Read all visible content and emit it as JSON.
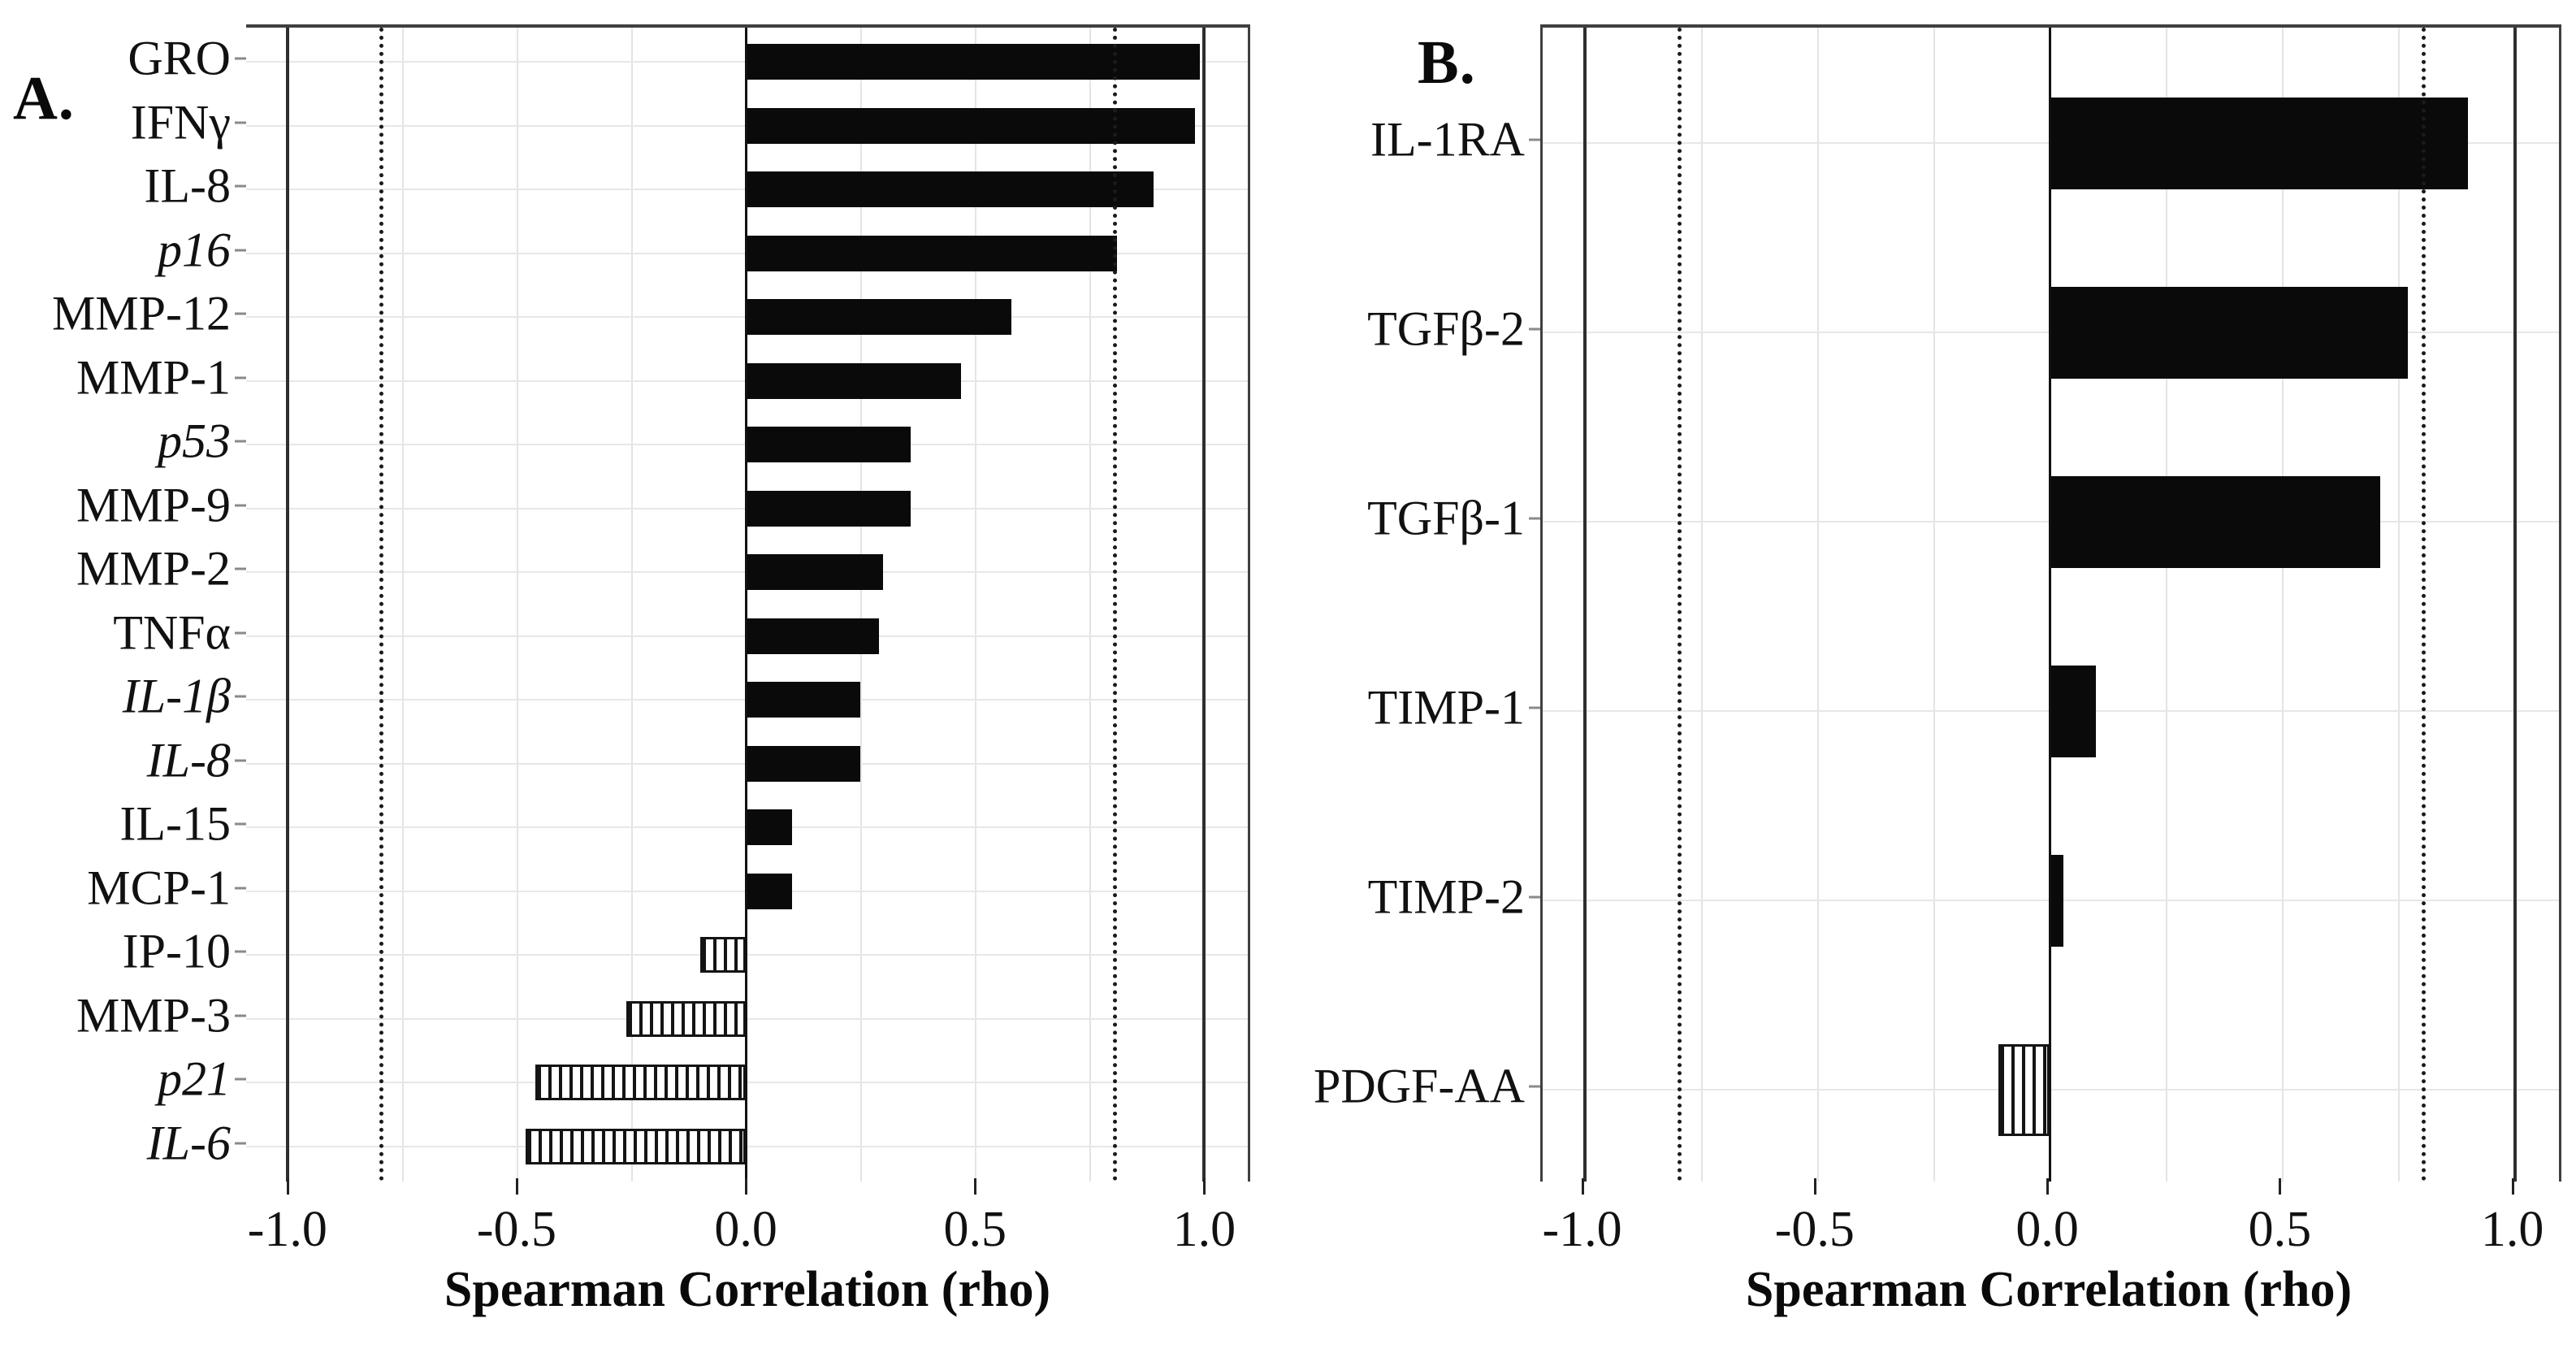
{
  "figure": {
    "panel_a_label": "A.",
    "panel_b_label": "B."
  },
  "chart_data": [
    {
      "type": "bar",
      "orientation": "horizontal",
      "panel": "A",
      "xlabel": "Spearman Correlation (rho)",
      "xlim": [
        -1.09,
        1.095
      ],
      "x_ticks": [
        -1.0,
        -0.5,
        0.0,
        0.5,
        1.0
      ],
      "x_tick_labels": [
        "-1.0",
        "-0.5",
        "0.0",
        "0.5",
        "1.0"
      ],
      "minor_gridlines": [
        -0.75,
        -0.5,
        -0.25,
        0.25,
        0.5,
        0.75
      ],
      "solid_ref_lines": [
        -1.0,
        1.0
      ],
      "dashed_ref_lines": [
        -0.8,
        0.8
      ],
      "grid": true,
      "legend": "none",
      "negative_bar_style": "hatched",
      "positive_bar_style": "solid-black",
      "categories": [
        "GRO",
        "IFNγ",
        "IL-8",
        "p16",
        "MMP-12",
        "MMP-1",
        "p53",
        "MMP-9",
        "MMP-2",
        "TNFα",
        "IL-1β",
        "IL-8",
        "IL-15",
        "MCP-1",
        "IP-10",
        "MMP-3",
        "p21",
        "IL-6"
      ],
      "italic_flags": [
        false,
        false,
        false,
        true,
        false,
        false,
        true,
        false,
        false,
        false,
        true,
        true,
        false,
        false,
        false,
        false,
        true,
        true
      ],
      "values": [
        0.99,
        0.98,
        0.89,
        0.81,
        0.58,
        0.47,
        0.36,
        0.36,
        0.3,
        0.29,
        0.25,
        0.25,
        0.1,
        0.1,
        -0.1,
        -0.26,
        -0.46,
        -0.48
      ]
    },
    {
      "type": "bar",
      "orientation": "horizontal",
      "panel": "B",
      "xlabel": "Spearman Correlation (rho)",
      "xlim": [
        -1.09,
        1.095
      ],
      "x_ticks": [
        -1.0,
        -0.5,
        0.0,
        0.5,
        1.0
      ],
      "x_tick_labels": [
        "-1.0",
        "-0.5",
        "0.0",
        "0.5",
        "1.0"
      ],
      "minor_gridlines": [
        -0.75,
        -0.5,
        -0.25,
        0.25,
        0.5,
        0.75
      ],
      "solid_ref_lines": [
        -1.0,
        1.0
      ],
      "dashed_ref_lines": [
        -0.8,
        0.8
      ],
      "grid": true,
      "legend": "none",
      "negative_bar_style": "hatched",
      "positive_bar_style": "solid-black",
      "categories": [
        "IL-1RA",
        "TGFβ-2",
        "TGFβ-1",
        "TIMP-1",
        "TIMP-2",
        "PDGF-AA"
      ],
      "italic_flags": [
        false,
        false,
        false,
        false,
        false,
        false
      ],
      "values": [
        0.9,
        0.77,
        0.71,
        0.1,
        0.03,
        -0.11
      ]
    }
  ]
}
